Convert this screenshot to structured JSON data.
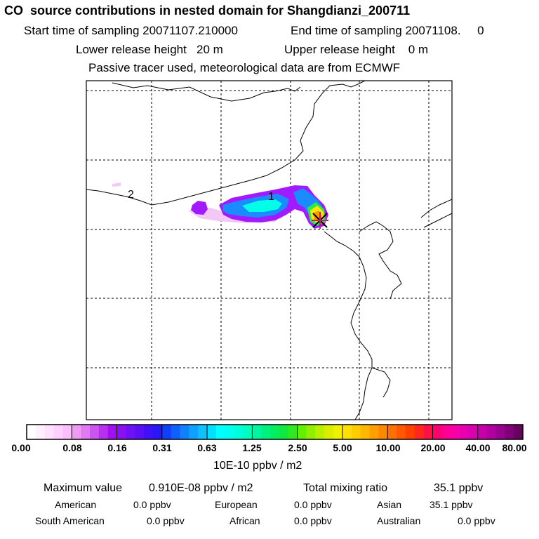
{
  "header": {
    "title": "CO  source contributions in nested domain for Shangdianzi_200711",
    "start_label": "Start time of sampling 20071107.210000",
    "end_label": "End time of sampling 20071108.     0",
    "lower_label": "Lower release height   20 m",
    "upper_label": "Upper release height    0 m",
    "tracer_note": "Passive tracer used, meteorological data are from ECMWF"
  },
  "map": {
    "markers": [
      "1",
      "2"
    ],
    "colors": {
      "frame": "#000000",
      "grid": "#000000",
      "coast": "#000000",
      "plume_light": "#f4c8f6",
      "plume_violet": "#a21aff",
      "plume_blue": "#1a8cff",
      "plume_cyan": "#00ffe6",
      "plume_green": "#2eea46",
      "plume_yellow": "#ffe600",
      "plume_orange": "#ff9900",
      "plume_peak": "#c41a6b"
    }
  },
  "colorbar": {
    "tick_labels": [
      "0.00",
      "0.08",
      "0.16",
      "0.31",
      "0.63",
      "1.25",
      "2.50",
      "5.00",
      "10.00",
      "20.00",
      "40.00",
      "80.00"
    ],
    "colors": [
      "#ffffff",
      "#fff0ff",
      "#ffe0ff",
      "#ffd0ff",
      "#fbbffb",
      "#f09af6",
      "#e07af3",
      "#cc55f0",
      "#b830ee",
      "#a010f0",
      "#8a10f4",
      "#7010f4",
      "#5a10f6",
      "#4010f8",
      "#2818f8",
      "#1040ff",
      "#1060ff",
      "#1080ff",
      "#10a0ff",
      "#10c0ff",
      "#00e0ff",
      "#00ffff",
      "#00fff0",
      "#00ffd8",
      "#00ffbf",
      "#00f6a0",
      "#00f080",
      "#00ee60",
      "#10e840",
      "#30e820",
      "#60f000",
      "#90f000",
      "#b8f000",
      "#d8f000",
      "#f0f000",
      "#ffe000",
      "#ffcc00",
      "#ffb800",
      "#ffa000",
      "#ff8800",
      "#ff7000",
      "#ff5800",
      "#ff4000",
      "#ff2820",
      "#ff1040",
      "#ff0070",
      "#ff0090",
      "#f800a8",
      "#e800b0",
      "#d800b0",
      "#c800a8",
      "#b000a0",
      "#980090",
      "#800078",
      "#680060"
    ],
    "units": "10E-10 ppbv / m2"
  },
  "summary": {
    "max_label": "Maximum value",
    "max_value": "0.910E-08 ppbv / m2",
    "total_label": "Total mixing ratio",
    "total_value": "35.1 ppbv",
    "regions": [
      {
        "name": "American",
        "value": "0.0 ppbv"
      },
      {
        "name": "European",
        "value": "0.0 ppbv"
      },
      {
        "name": "Asian",
        "value": "35.1 ppbv"
      },
      {
        "name": "South American",
        "value": "0.0 ppbv"
      },
      {
        "name": "African",
        "value": "0.0 ppbv"
      },
      {
        "name": "Australian",
        "value": "0.0 ppbv"
      }
    ]
  }
}
